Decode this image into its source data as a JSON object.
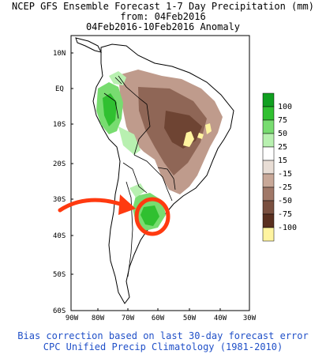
{
  "header": {
    "line1": "NCEP GFS Ensemble Forecast 1-7 Day Precipitation (mm)",
    "line2": "from: 04Feb2016",
    "line3": "04Feb2016-10Feb2016 Anomaly"
  },
  "map": {
    "lat_labels": [
      "10N",
      "EQ",
      "10S",
      "20S",
      "30S",
      "40S",
      "50S",
      "60S"
    ],
    "lon_labels": [
      "90W",
      "80W",
      "70W",
      "60W",
      "50W",
      "40W",
      "30W"
    ],
    "land_color": "#ffffff",
    "annotation": {
      "shape": "circle with arrow",
      "color": "#ff3a10"
    }
  },
  "legend": {
    "entries": [
      {
        "label": "100",
        "color": "#10a020"
      },
      {
        "label": "75",
        "color": "#30c030"
      },
      {
        "label": "50",
        "color": "#78dc70"
      },
      {
        "label": "25",
        "color": "#b8f0b0"
      },
      {
        "label": "15",
        "color": "#ffffff"
      },
      {
        "label": "-15",
        "color": "#e8ddd5"
      },
      {
        "label": "-25",
        "color": "#c8a898"
      },
      {
        "label": "-50",
        "color": "#a07868"
      },
      {
        "label": "-75",
        "color": "#7a5040"
      },
      {
        "label": "-100",
        "color": "#5a3020"
      }
    ],
    "extreme_color": "#fff4a0"
  },
  "footer": {
    "line1": "Bias correction based on last 30-day forecast error",
    "line2": "CPC Unified Precip Climatology (1981-2010)"
  }
}
